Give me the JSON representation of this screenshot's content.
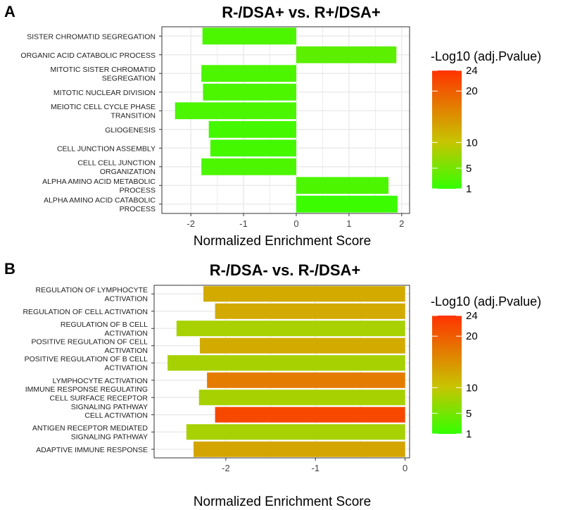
{
  "colors": {
    "low": "#33ff00",
    "mid": "#c8c400",
    "high": "#ff3300",
    "grid": "#ebebeb",
    "border": "#333333"
  },
  "chart_data": [
    {
      "panel_label": "A",
      "type": "bar",
      "orientation": "horizontal",
      "title": "R-/DSA+ vs. R+/DSA+",
      "xlabel": "Normalized Enrichment Score",
      "xlim": [
        -2.55,
        2.15
      ],
      "xticks": [
        -2,
        -1,
        0,
        1,
        2
      ],
      "xtick_labels": [
        "-2",
        "-1",
        "0",
        "1",
        "2"
      ],
      "categories": [
        [
          "SISTER CHROMATID SEGREGATION"
        ],
        [
          "ORGANIC ACID CATABOLIC PROCESS"
        ],
        [
          "MITOTIC SISTER CHROMATID",
          "SEGREGATION"
        ],
        [
          "MITOTIC NUCLEAR DIVISION"
        ],
        [
          "MEIOTIC CELL CYCLE PHASE",
          "TRANSITION"
        ],
        [
          "GLIOGENESIS"
        ],
        [
          "CELL JUNCTION ASSEMBLY"
        ],
        [
          "CELL CELL JUNCTION",
          "ORGANIZATION"
        ],
        [
          "ALPHA AMINO ACID METABOLIC",
          "PROCESS"
        ],
        [
          "ALPHA AMINO ACID CATABOLIC",
          "PROCESS"
        ]
      ],
      "values": [
        -1.78,
        1.9,
        -1.8,
        -1.77,
        -2.3,
        -1.66,
        -1.63,
        -1.8,
        1.75,
        1.92
      ],
      "neglog10_padj": [
        2.5,
        3.5,
        2.5,
        2.5,
        2.5,
        2.0,
        2.0,
        2.5,
        2.5,
        1.5
      ],
      "legend": {
        "title": "-Log10 (adj.Pvalue)",
        "ticks": [
          1,
          5,
          10,
          20,
          24
        ],
        "tick_labels": [
          "1",
          "5",
          "10",
          "20",
          "24"
        ]
      }
    },
    {
      "panel_label": "B",
      "type": "bar",
      "orientation": "horizontal",
      "title": "R-/DSA- vs. R-/DSA+",
      "xlabel": "Normalized Enrichment Score",
      "xlim": [
        -2.8,
        0.05
      ],
      "xticks": [
        -2,
        -1,
        0
      ],
      "xtick_labels": [
        "-2",
        "-1",
        "0"
      ],
      "categories": [
        [
          "REGULATION OF LYMPHOCYTE",
          "ACTIVATION"
        ],
        [
          "REGULATION OF CELL ACTIVATION"
        ],
        [
          "REGULATION OF B CELL",
          "ACTIVATION"
        ],
        [
          "POSITIVE REGULATION OF CELL",
          "ACTIVATION"
        ],
        [
          "POSITIVE REGULATION OF B CELL",
          "ACTIVATION"
        ],
        [
          "LYMPHOCYTE ACTIVATION"
        ],
        [
          "IMMUNE RESPONSE REGULATING",
          "CELL SURFACE RECEPTOR",
          "SIGNALING PATHWAY"
        ],
        [
          "CELL ACTIVATION"
        ],
        [
          "ANTIGEN RECEPTOR MEDIATED",
          "SIGNALING PATHWAY"
        ],
        [
          "ADAPTIVE IMMUNE RESPONSE"
        ]
      ],
      "values": [
        -2.25,
        -2.12,
        -2.55,
        -2.29,
        -2.65,
        -2.21,
        -2.3,
        -2.12,
        -2.44,
        -2.36
      ],
      "neglog10_padj": [
        12.5,
        12.5,
        8.0,
        12.5,
        8.0,
        17.0,
        8.0,
        22.0,
        8.0,
        13.0
      ],
      "legend": {
        "title": "-Log10 (adj.Pvalue)",
        "ticks": [
          1,
          5,
          10,
          20,
          24
        ],
        "tick_labels": [
          "1",
          "5",
          "10",
          "20",
          "24"
        ]
      }
    }
  ]
}
